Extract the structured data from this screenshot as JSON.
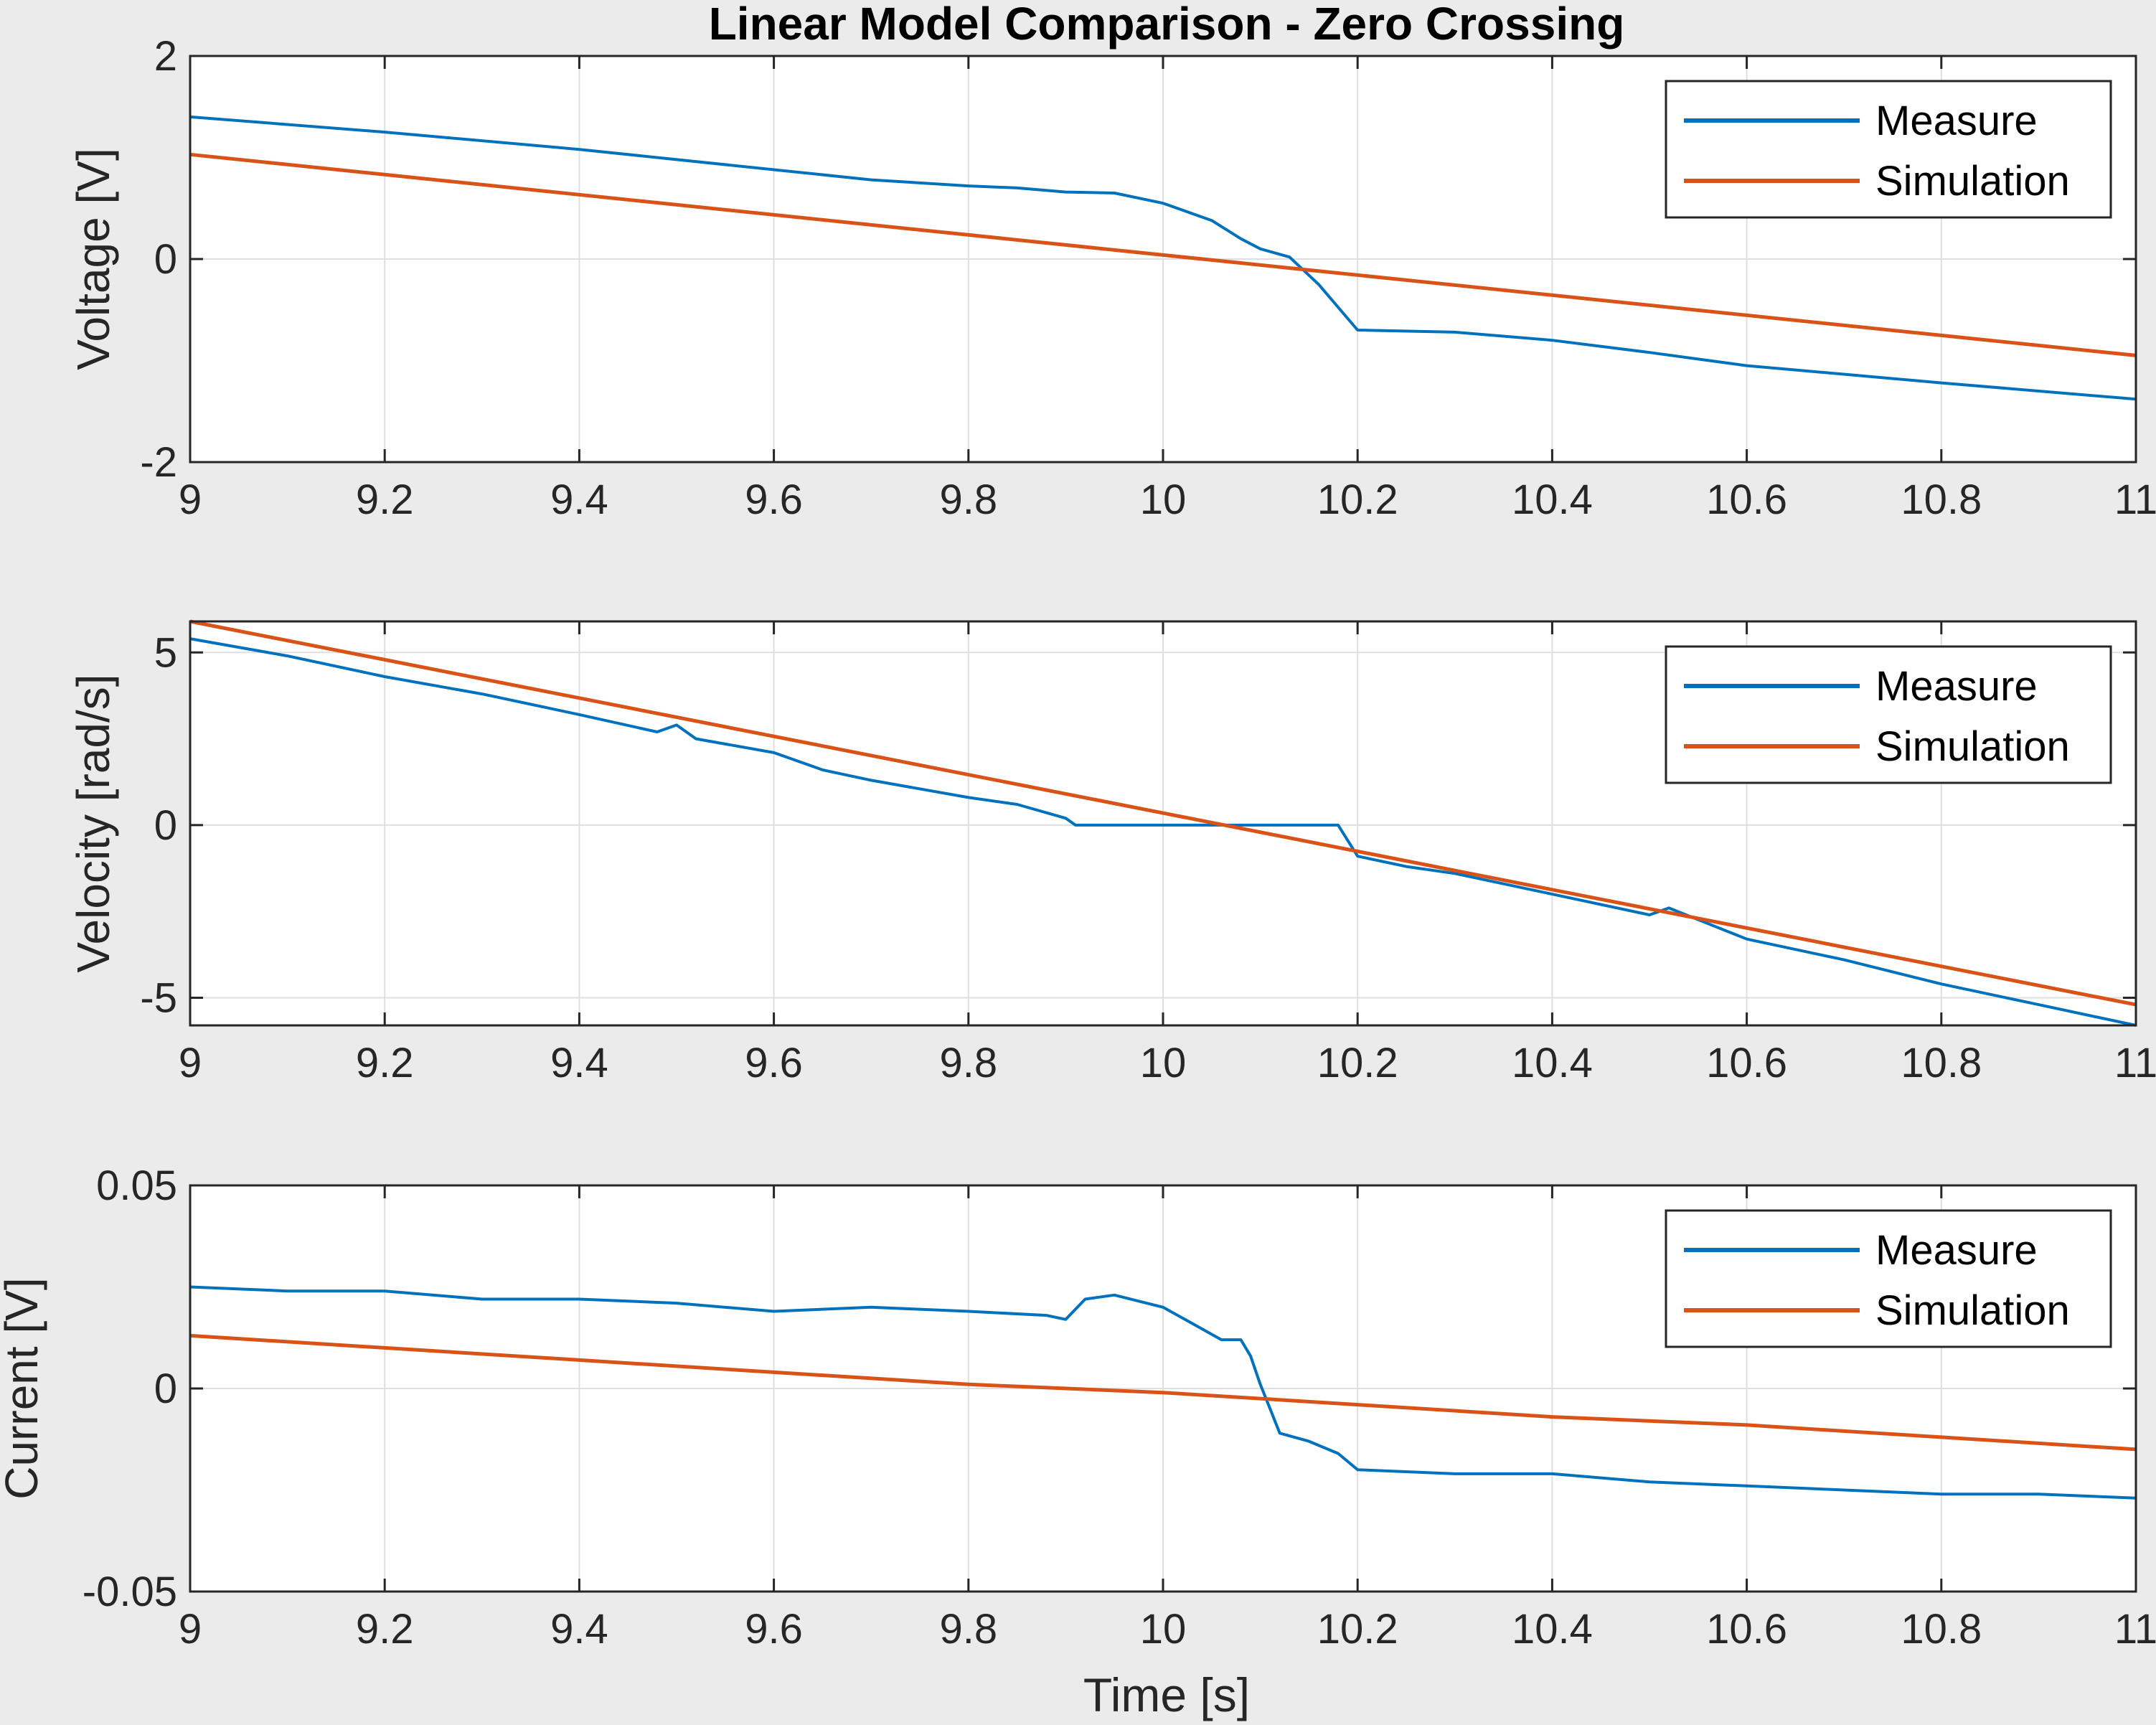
{
  "figure": {
    "title": "Linear Model Comparison - Zero Crossing",
    "xlabel": "Time [s]"
  },
  "colors": {
    "measure": "#0072BD",
    "simulation": "#D95319"
  },
  "chart_data": [
    {
      "type": "line",
      "ylabel": "Voltage [V]",
      "xlim": [
        9,
        11
      ],
      "ylim": [
        -2,
        2
      ],
      "xticks": [
        9,
        9.2,
        9.4,
        9.6,
        9.8,
        10,
        10.2,
        10.4,
        10.6,
        10.8,
        11
      ],
      "xtick_labels": [
        "9",
        "9.2",
        "9.4",
        "9.6",
        "9.8",
        "10",
        "10.2",
        "10.4",
        "10.6",
        "10.8",
        "11"
      ],
      "yticks": [
        -2,
        0,
        2
      ],
      "ytick_labels": [
        "-2",
        "0",
        "2"
      ],
      "grid": true,
      "legend": {
        "location": "top-right",
        "entries": [
          "Measure",
          "Simulation"
        ]
      },
      "series": [
        {
          "name": "Measure",
          "x": [
            9.0,
            9.2,
            9.4,
            9.6,
            9.7,
            9.8,
            9.85,
            9.9,
            9.95,
            10.0,
            10.05,
            10.08,
            10.1,
            10.13,
            10.16,
            10.2,
            10.3,
            10.4,
            10.5,
            10.6,
            10.8,
            11.0
          ],
          "y": [
            1.4,
            1.25,
            1.08,
            0.88,
            0.78,
            0.72,
            0.7,
            0.66,
            0.65,
            0.55,
            0.38,
            0.2,
            0.1,
            0.02,
            -0.25,
            -0.7,
            -0.72,
            -0.8,
            -0.92,
            -1.05,
            -1.22,
            -1.38
          ]
        },
        {
          "name": "Simulation",
          "x": [
            9.0,
            11.0
          ],
          "y": [
            1.03,
            -0.95
          ]
        }
      ]
    },
    {
      "type": "line",
      "ylabel": "Velocity [rad/s]",
      "xlim": [
        9,
        11
      ],
      "ylim": [
        -5.8,
        5.9
      ],
      "xticks": [
        9,
        9.2,
        9.4,
        9.6,
        9.8,
        10,
        10.2,
        10.4,
        10.6,
        10.8,
        11
      ],
      "xtick_labels": [
        "9",
        "9.2",
        "9.4",
        "9.6",
        "9.8",
        "10",
        "10.2",
        "10.4",
        "10.6",
        "10.8",
        "11"
      ],
      "yticks": [
        -5,
        0,
        5
      ],
      "ytick_labels": [
        "-5",
        "0",
        "5"
      ],
      "grid": true,
      "legend": {
        "location": "top-right",
        "entries": [
          "Measure",
          "Simulation"
        ]
      },
      "series": [
        {
          "name": "Measure",
          "x": [
            9.0,
            9.1,
            9.2,
            9.3,
            9.4,
            9.48,
            9.5,
            9.52,
            9.6,
            9.65,
            9.7,
            9.8,
            9.85,
            9.9,
            9.91,
            10.0,
            10.1,
            10.18,
            10.2,
            10.25,
            10.3,
            10.35,
            10.4,
            10.5,
            10.52,
            10.6,
            10.7,
            10.8,
            10.9,
            11.0
          ],
          "y": [
            5.4,
            4.9,
            4.3,
            3.8,
            3.2,
            2.7,
            2.9,
            2.5,
            2.1,
            1.6,
            1.3,
            0.8,
            0.6,
            0.2,
            0.0,
            0.0,
            0.0,
            0.0,
            -0.9,
            -1.2,
            -1.4,
            -1.7,
            -2.0,
            -2.6,
            -2.4,
            -3.3,
            -3.9,
            -4.6,
            -5.2,
            -5.8
          ]
        },
        {
          "name": "Simulation",
          "x": [
            9.0,
            11.0
          ],
          "y": [
            5.9,
            -5.2
          ]
        }
      ]
    },
    {
      "type": "line",
      "ylabel": "Current [V]",
      "xlabel": "Time [s]",
      "xlim": [
        9,
        11
      ],
      "ylim": [
        -0.05,
        0.05
      ],
      "xticks": [
        9,
        9.2,
        9.4,
        9.6,
        9.8,
        10,
        10.2,
        10.4,
        10.6,
        10.8,
        11
      ],
      "xtick_labels": [
        "9",
        "9.2",
        "9.4",
        "9.6",
        "9.8",
        "10",
        "10.2",
        "10.4",
        "10.6",
        "10.8",
        "11"
      ],
      "yticks": [
        -0.05,
        0,
        0.05
      ],
      "ytick_labels": [
        "-0.05",
        "0",
        "0.05"
      ],
      "grid": true,
      "legend": {
        "location": "top-right",
        "entries": [
          "Measure",
          "Simulation"
        ]
      },
      "series": [
        {
          "name": "Measure",
          "x": [
            9.0,
            9.1,
            9.2,
            9.3,
            9.4,
            9.5,
            9.6,
            9.7,
            9.8,
            9.88,
            9.9,
            9.92,
            9.95,
            10.0,
            10.03,
            10.06,
            10.08,
            10.09,
            10.1,
            10.11,
            10.12,
            10.15,
            10.18,
            10.2,
            10.3,
            10.4,
            10.5,
            10.6,
            10.7,
            10.8,
            10.9,
            11.0
          ],
          "y": [
            0.025,
            0.024,
            0.024,
            0.022,
            0.022,
            0.021,
            0.019,
            0.02,
            0.019,
            0.018,
            0.017,
            0.022,
            0.023,
            0.02,
            0.016,
            0.012,
            0.012,
            0.008,
            0.001,
            -0.005,
            -0.011,
            -0.013,
            -0.016,
            -0.02,
            -0.021,
            -0.021,
            -0.023,
            -0.024,
            -0.025,
            -0.026,
            -0.026,
            -0.027
          ]
        },
        {
          "name": "Simulation",
          "x": [
            9.0,
            9.2,
            9.4,
            9.6,
            9.8,
            10.0,
            10.2,
            10.4,
            10.6,
            10.8,
            11.0
          ],
          "y": [
            0.013,
            0.01,
            0.007,
            0.004,
            0.001,
            -0.001,
            -0.004,
            -0.007,
            -0.009,
            -0.012,
            -0.015
          ]
        }
      ]
    }
  ]
}
